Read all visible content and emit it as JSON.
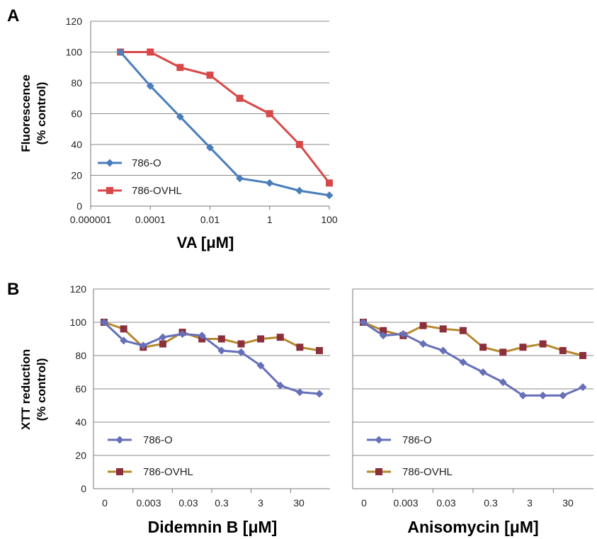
{
  "chart_data": [
    {
      "type": "line",
      "panel_label": "A",
      "xlabel": "VA [μM]",
      "ylabel_lines": [
        "Fluorescence",
        "(% control)"
      ],
      "x_scale": "log",
      "x_ticks": [
        1e-06,
        0.0001,
        0.01,
        1,
        100
      ],
      "x_tick_labels": [
        "0.000001",
        "0.0001",
        "0.01",
        "1",
        "100"
      ],
      "ylim": [
        0,
        120
      ],
      "y_ticks": [
        0,
        20,
        40,
        60,
        80,
        100,
        120
      ],
      "grid": "horizontal",
      "legend_position": "bottom-left",
      "series": [
        {
          "name": "786-O",
          "color": "#4a7ebb",
          "marker": "diamond",
          "x": [
            1e-05,
            0.0001,
            0.001,
            0.01,
            0.1,
            1,
            10,
            100
          ],
          "values": [
            100,
            78,
            58,
            38,
            18,
            15,
            10,
            7
          ]
        },
        {
          "name": "786-OVHL",
          "color": "#d84848",
          "marker": "square",
          "x": [
            1e-05,
            0.0001,
            0.001,
            0.01,
            0.1,
            1,
            10,
            100
          ],
          "values": [
            100,
            100,
            90,
            85,
            70,
            60,
            40,
            15
          ]
        }
      ]
    },
    {
      "type": "line",
      "panel_label": "B",
      "xlabel": "Didemnin B [μM]",
      "ylabel_lines": [
        "XTT reduction",
        "(% control)"
      ],
      "x_tick_labels": [
        "0",
        "0.003",
        "0.03",
        "0.3",
        "3",
        "30"
      ],
      "ylim": [
        0,
        120
      ],
      "y_ticks": [
        0,
        20,
        40,
        60,
        80,
        100,
        120
      ],
      "grid": "horizontal",
      "legend_position": "bottom-left",
      "series": [
        {
          "name": "786-O",
          "color": "#6670b8",
          "marker": "diamond",
          "values": [
            100,
            89,
            86,
            91,
            93,
            92,
            83,
            82,
            74,
            62,
            58,
            57
          ]
        },
        {
          "name": "786-OVHL",
          "color": "#8c2f3c",
          "line_color": "#b5892e",
          "marker": "square",
          "values": [
            100,
            96,
            85,
            87,
            94,
            90,
            90,
            87,
            90,
            91,
            85,
            83
          ]
        }
      ]
    },
    {
      "type": "line",
      "xlabel": "Anisomycin [μM]",
      "x_tick_labels": [
        "0",
        "0.003",
        "0.03",
        "0.3",
        "3",
        "30"
      ],
      "ylim": [
        0,
        120
      ],
      "y_ticks": [
        0,
        20,
        40,
        60,
        80,
        100,
        120
      ],
      "grid": "horizontal",
      "legend_position": "bottom-left",
      "series": [
        {
          "name": "786-O",
          "color": "#6670b8",
          "marker": "diamond",
          "values": [
            100,
            92,
            93,
            87,
            83,
            76,
            70,
            64,
            56,
            56,
            56,
            61
          ]
        },
        {
          "name": "786-OVHL",
          "color": "#8c2f3c",
          "line_color": "#b5892e",
          "marker": "square",
          "values": [
            100,
            95,
            92,
            98,
            96,
            95,
            85,
            82,
            85,
            87,
            83,
            80
          ]
        }
      ]
    }
  ]
}
